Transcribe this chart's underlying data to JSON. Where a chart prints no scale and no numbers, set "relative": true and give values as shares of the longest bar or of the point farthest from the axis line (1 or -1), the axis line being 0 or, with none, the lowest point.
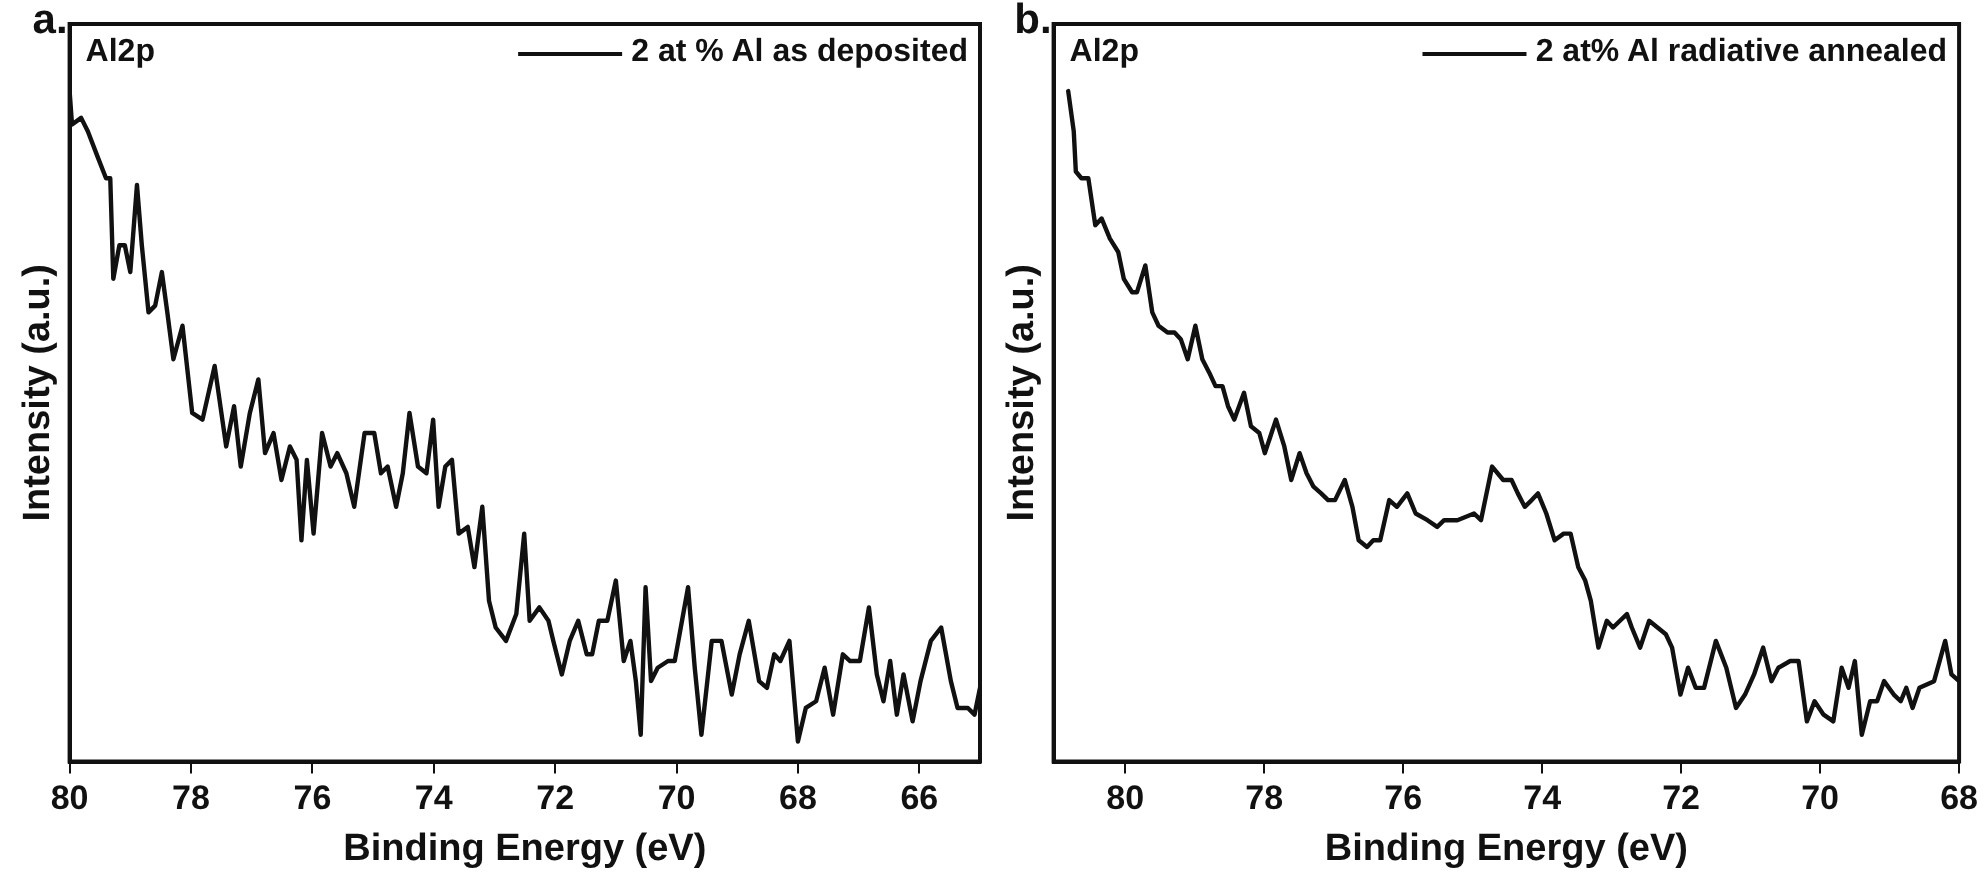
{
  "chart_data": [
    {
      "type": "line",
      "title": "a.",
      "xlabel": "Binding Energy (eV)",
      "ylabel": "Intensity (a.u.)",
      "annotations": [
        "Al2p"
      ],
      "relative": true,
      "legend": "top right",
      "grid": false,
      "marker": "none",
      "line_style": "solid",
      "xlim": [
        80,
        65
      ],
      "xticks": [
        80,
        78,
        76,
        74,
        72,
        70,
        68,
        66
      ],
      "series": [
        {
          "name": "2 at % Al as deposited",
          "color": "#111111",
          "x": [
            80.0,
            79.96,
            79.81,
            79.7,
            79.53,
            79.4,
            79.33,
            79.28,
            79.18,
            79.09,
            79.0,
            78.89,
            78.81,
            78.7,
            78.59,
            78.48,
            78.39,
            78.29,
            78.14,
            77.98,
            77.81,
            77.61,
            77.42,
            77.29,
            77.18,
            77.03,
            76.89,
            76.78,
            76.64,
            76.51,
            76.37,
            76.26,
            76.18,
            76.09,
            75.98,
            75.84,
            75.7,
            75.59,
            75.44,
            75.31,
            75.14,
            74.98,
            74.87,
            74.76,
            74.62,
            74.51,
            74.4,
            74.26,
            74.12,
            74.01,
            73.92,
            73.81,
            73.7,
            73.59,
            73.44,
            73.33,
            73.2,
            73.09,
            72.98,
            72.81,
            72.64,
            72.51,
            72.42,
            72.26,
            72.11,
            72.03,
            71.89,
            71.76,
            71.62,
            71.48,
            71.39,
            71.28,
            71.14,
            71.0,
            70.87,
            70.76,
            70.67,
            70.59,
            70.51,
            70.42,
            70.31,
            70.14,
            70.03,
            69.81,
            69.7,
            69.59,
            69.42,
            69.26,
            69.09,
            68.96,
            68.81,
            68.64,
            68.51,
            68.39,
            68.29,
            68.14,
            68.0,
            67.87,
            67.7,
            67.56,
            67.42,
            67.26,
            67.14,
            66.98,
            66.83,
            66.7,
            66.59,
            66.48,
            66.37,
            66.26,
            66.11,
            65.98,
            65.81,
            65.64,
            65.48,
            65.37,
            65.2,
            65.09,
            65.0
          ],
          "values": [
            1.0,
            0.95,
            0.96,
            0.94,
            0.9,
            0.87,
            0.87,
            0.72,
            0.77,
            0.77,
            0.73,
            0.86,
            0.77,
            0.67,
            0.68,
            0.73,
            0.67,
            0.6,
            0.65,
            0.52,
            0.51,
            0.59,
            0.47,
            0.53,
            0.44,
            0.52,
            0.57,
            0.46,
            0.49,
            0.42,
            0.47,
            0.45,
            0.33,
            0.45,
            0.34,
            0.49,
            0.44,
            0.46,
            0.43,
            0.38,
            0.49,
            0.49,
            0.43,
            0.44,
            0.38,
            0.43,
            0.52,
            0.44,
            0.43,
            0.51,
            0.38,
            0.44,
            0.45,
            0.34,
            0.35,
            0.29,
            0.38,
            0.24,
            0.2,
            0.18,
            0.22,
            0.34,
            0.21,
            0.23,
            0.21,
            0.18,
            0.13,
            0.18,
            0.21,
            0.16,
            0.16,
            0.21,
            0.21,
            0.27,
            0.15,
            0.18,
            0.12,
            0.04,
            0.26,
            0.12,
            0.14,
            0.15,
            0.15,
            0.26,
            0.14,
            0.04,
            0.18,
            0.18,
            0.1,
            0.16,
            0.21,
            0.12,
            0.11,
            0.16,
            0.15,
            0.18,
            0.03,
            0.08,
            0.09,
            0.14,
            0.07,
            0.16,
            0.15,
            0.15,
            0.23,
            0.13,
            0.09,
            0.15,
            0.07,
            0.13,
            0.06,
            0.12,
            0.18,
            0.2,
            0.12,
            0.08,
            0.08,
            0.07,
            0.11
          ]
        }
      ]
    },
    {
      "type": "line",
      "title": "b.",
      "xlabel": "Binding Energy (eV)",
      "ylabel": "Intensity (a.u.)",
      "annotations": [
        "Al2p"
      ],
      "relative": true,
      "legend": "top right",
      "grid": false,
      "marker": "none",
      "line_style": "solid",
      "xlim": [
        81.03,
        68
      ],
      "xticks": [
        80,
        78,
        76,
        74,
        72,
        70,
        68
      ],
      "series": [
        {
          "name": "2 at% Al radiative annealed",
          "color": "#111111",
          "x": [
            80.82,
            80.74,
            80.71,
            80.63,
            80.53,
            80.43,
            80.34,
            80.22,
            80.1,
            80.02,
            79.9,
            79.83,
            79.71,
            79.61,
            79.52,
            79.39,
            79.29,
            79.2,
            79.1,
            78.99,
            78.89,
            78.79,
            78.7,
            78.6,
            78.52,
            78.43,
            78.29,
            78.19,
            78.07,
            77.99,
            77.83,
            77.71,
            77.61,
            77.49,
            77.39,
            77.29,
            77.18,
            77.08,
            76.98,
            76.84,
            76.73,
            76.64,
            76.52,
            76.43,
            76.33,
            76.2,
            76.09,
            75.94,
            75.82,
            75.65,
            75.51,
            75.41,
            75.22,
            74.98,
            74.88,
            74.72,
            74.56,
            74.44,
            74.35,
            74.25,
            74.15,
            74.06,
            73.94,
            73.82,
            73.69,
            73.59,
            73.48,
            73.38,
            73.3,
            73.19,
            73.07,
            72.98,
            72.88,
            72.78,
            72.71,
            72.59,
            72.46,
            72.34,
            72.22,
            72.13,
            72.01,
            71.9,
            71.79,
            71.67,
            71.5,
            71.35,
            71.21,
            71.08,
            70.95,
            70.82,
            70.7,
            70.6,
            70.43,
            70.31,
            70.19,
            70.08,
            69.95,
            69.81,
            69.69,
            69.59,
            69.5,
            69.4,
            69.28,
            69.18,
            69.08,
            68.94,
            68.84,
            68.76,
            68.67,
            68.57,
            68.36,
            68.2,
            68.11,
            68.0
          ],
          "values": [
            1.0,
            0.94,
            0.88,
            0.87,
            0.87,
            0.8,
            0.81,
            0.78,
            0.76,
            0.72,
            0.7,
            0.7,
            0.74,
            0.67,
            0.65,
            0.64,
            0.64,
            0.63,
            0.6,
            0.65,
            0.6,
            0.58,
            0.56,
            0.56,
            0.53,
            0.51,
            0.55,
            0.5,
            0.49,
            0.46,
            0.51,
            0.47,
            0.42,
            0.46,
            0.43,
            0.41,
            0.4,
            0.39,
            0.39,
            0.42,
            0.38,
            0.33,
            0.32,
            0.33,
            0.33,
            0.39,
            0.38,
            0.4,
            0.37,
            0.36,
            0.35,
            0.36,
            0.36,
            0.37,
            0.36,
            0.44,
            0.42,
            0.42,
            0.4,
            0.38,
            0.39,
            0.4,
            0.37,
            0.33,
            0.34,
            0.34,
            0.29,
            0.27,
            0.24,
            0.17,
            0.21,
            0.2,
            0.21,
            0.22,
            0.2,
            0.17,
            0.21,
            0.2,
            0.19,
            0.17,
            0.1,
            0.14,
            0.11,
            0.11,
            0.18,
            0.14,
            0.08,
            0.1,
            0.13,
            0.17,
            0.12,
            0.14,
            0.15,
            0.15,
            0.06,
            0.09,
            0.07,
            0.06,
            0.14,
            0.11,
            0.15,
            0.04,
            0.09,
            0.09,
            0.12,
            0.1,
            0.09,
            0.11,
            0.08,
            0.11,
            0.12,
            0.18,
            0.13,
            0.12
          ]
        }
      ]
    }
  ]
}
